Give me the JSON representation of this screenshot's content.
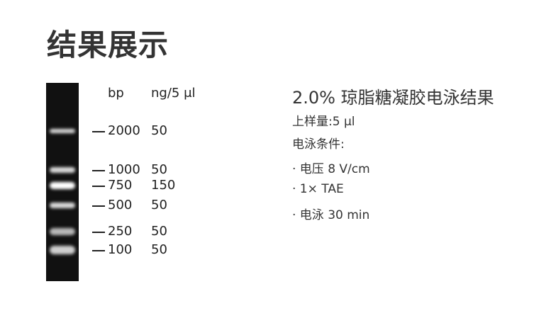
{
  "title": "结果展示",
  "gel": {
    "header_bp": "bp",
    "header_ng": "ng/5 μl",
    "bands": [
      {
        "bp": "2000",
        "ng": "50",
        "intensity": 0.85
      },
      {
        "bp": "1000",
        "ng": "50",
        "intensity": 0.85
      },
      {
        "bp": "750",
        "ng": "150",
        "intensity": 1.0
      },
      {
        "bp": "500",
        "ng": "50",
        "intensity": 0.85
      },
      {
        "bp": "250",
        "ng": "50",
        "intensity": 0.7
      },
      {
        "bp": "100",
        "ng": "50",
        "intensity": 0.8
      }
    ]
  },
  "result": {
    "heading": "2.0% 琼脂糖凝胶电泳结果",
    "lines": [
      "上样量:5 μl",
      "电泳条件:",
      "· 电压 8 V/cm",
      "· 1× TAE",
      "· 电泳 30 min"
    ]
  }
}
